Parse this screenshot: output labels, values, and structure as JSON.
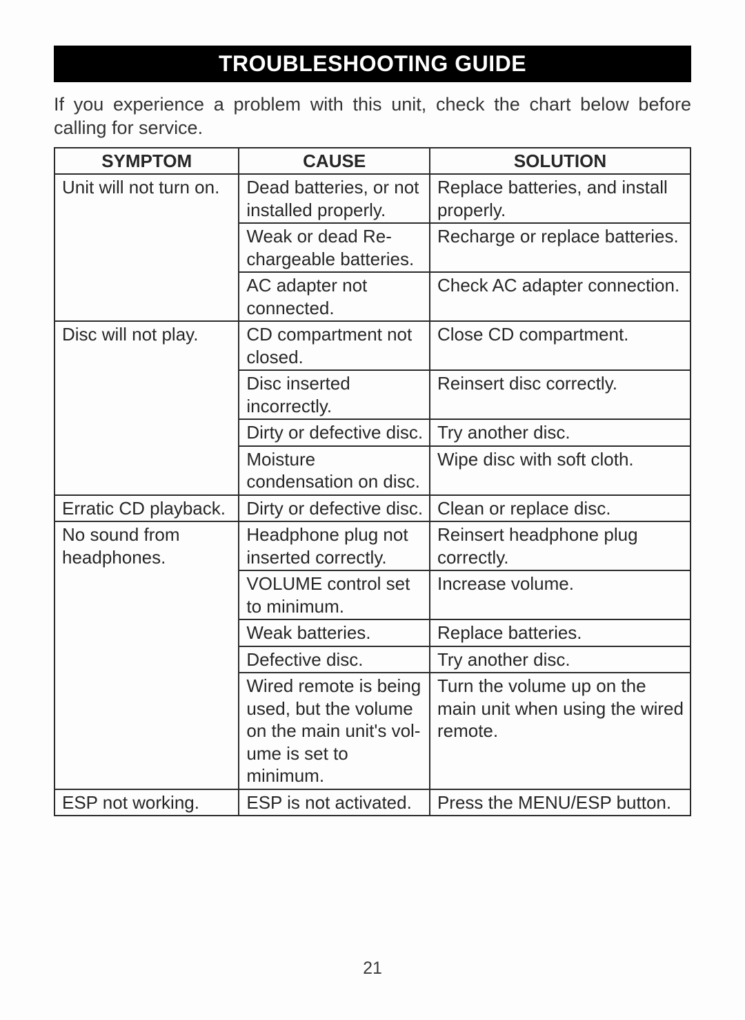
{
  "title": "TROUBLESHOOTING GUIDE",
  "intro": "If you experience a problem with this unit, check the chart below before calling for service.",
  "table": {
    "headers": {
      "symptom": "SYMPTOM",
      "cause": "CAUSE",
      "solution": "SOLUTION"
    },
    "rows": [
      {
        "symptom": "Unit will not turn on.",
        "cause": "Dead batteries, or not installed properly.",
        "solution": "Replace batteries, and install properly.",
        "newSymptom": true
      },
      {
        "symptom": "",
        "cause": "Weak or dead Re-chargeable batteries.",
        "solution": "Recharge or replace batteries.",
        "newSymptom": false
      },
      {
        "symptom": "",
        "cause": "AC adapter not connected.",
        "solution": "Check AC adapter connection.",
        "newSymptom": false
      },
      {
        "symptom": "Disc will not play.",
        "cause": "CD compartment not closed.",
        "solution": "Close CD compartment.",
        "newSymptom": true
      },
      {
        "symptom": "",
        "cause": "Disc inserted incorrectly.",
        "solution": "Reinsert disc correctly.",
        "newSymptom": false
      },
      {
        "symptom": "",
        "cause": "Dirty or defective disc.",
        "solution": "Try another disc.",
        "newSymptom": false
      },
      {
        "symptom": "",
        "cause": "Moisture condensation on disc.",
        "solution": "Wipe disc with soft cloth.",
        "newSymptom": false
      },
      {
        "symptom": "Erratic CD playback.",
        "cause": "Dirty or defective disc.",
        "solution": "Clean or replace disc.",
        "newSymptom": true
      },
      {
        "symptom": "No sound from headphones.",
        "cause": "Headphone plug not inserted correctly.",
        "solution": "Reinsert headphone plug correctly.",
        "newSymptom": true
      },
      {
        "symptom": "",
        "cause": "VOLUME control set to minimum.",
        "solution": "Increase volume.",
        "newSymptom": false
      },
      {
        "symptom": "",
        "cause": "Weak batteries.",
        "solution": "Replace batteries.",
        "newSymptom": false
      },
      {
        "symptom": "",
        "cause": "Defective disc.",
        "solution": "Try another disc.",
        "newSymptom": false
      },
      {
        "symptom": "",
        "cause": "Wired remote is being used, but the volume on the main unit's vol-ume is set to minimum.",
        "solution": "Turn the volume up on the main unit when using the wired remote.",
        "newSymptom": false
      },
      {
        "symptom": "ESP not working.",
        "cause": "ESP is not activated.",
        "solution": "Press the MENU/ESP button.",
        "newSymptom": true
      }
    ]
  },
  "pageNumber": "21"
}
